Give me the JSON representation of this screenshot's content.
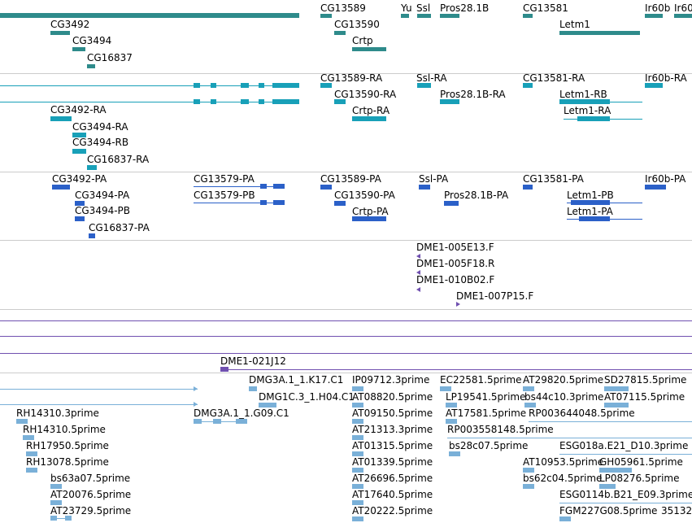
{
  "colors": {
    "gene": "#2e8b8b",
    "transcript": "#18a0b8",
    "protein": "#2b60c8",
    "clone": "#7050b0",
    "est": "#7ab0d8",
    "separator": "#cccccc"
  },
  "tracks": {
    "genes": {
      "labels": [
        "CG3492",
        "CG3494",
        "CG16837",
        "CG13589",
        "CG13590",
        "Crtp",
        "Yu",
        "Ssl",
        "Pros28.1B",
        "CG13581",
        "Letm1",
        "Ir60b",
        "Ir60"
      ]
    },
    "transcripts": {
      "labels": [
        "CG3492-RA",
        "CG3494-RA",
        "CG3494-RB",
        "CG16837-RA",
        "CG13589-RA",
        "CG13590-RA",
        "Crtp-RA",
        "Ssl-RA",
        "Pros28.1B-RA",
        "CG13581-RA",
        "Letm1-RB",
        "Letm1-RA",
        "Ir60b-RA"
      ]
    },
    "proteins": {
      "labels": [
        "CG3492-PA",
        "CG3494-PA",
        "CG3494-PB",
        "CG16837-PA",
        "CG13579-PA",
        "CG13579-PB",
        "CG13589-PA",
        "CG13590-PA",
        "Crtp-PA",
        "Ssl-PA",
        "Pros28.1B-PA",
        "CG13581-PA",
        "Letm1-PB",
        "Letm1-PA",
        "Ir60b-PA"
      ]
    },
    "clone_ends": {
      "labels": [
        "DME1-005E13.F",
        "DME1-005F18.R",
        "DME1-010B02.F",
        "DME1-007P15.F"
      ]
    },
    "clones": {
      "labels": [
        "DME1-021J12"
      ]
    },
    "ests": {
      "labels": [
        "DMG3A.1_1.K17.C1",
        "DMG1C.3_1.H04.C1",
        "DMG3A.1_1.G09.C1",
        "IP09712.3prime",
        "AT08820.5prime",
        "AT09150.5prime",
        "AT21313.3prime",
        "AT01315.5prime",
        "AT01339.5prime",
        "AT26696.5prime",
        "AT17640.5prime",
        "AT20222.5prime",
        "EC22581.5prime",
        "AT29820.5prime",
        "SD27815.5prime",
        "LP19541.5prime",
        "bs44c10.3prime",
        "AT07115.5prime",
        "AT17581.5prime",
        "RP003644048.5prime",
        "RP003558148.5prime",
        "bs28c07.5prime",
        "ESG018a.E21_D10.3prime",
        "AT10953.5prime",
        "GH05961.5prime",
        "bs62c04.5prime",
        "LP08276.5prime",
        "ESG0114b.B21_E09.3prime",
        "FGM227G08.5prime",
        "35132",
        "RH14310.3prime",
        "RH14310.5prime",
        "RH17950.5prime",
        "RH13078.5prime",
        "bs63a07.5prime",
        "AT20076.5prime",
        "AT23729.5prime"
      ]
    }
  }
}
